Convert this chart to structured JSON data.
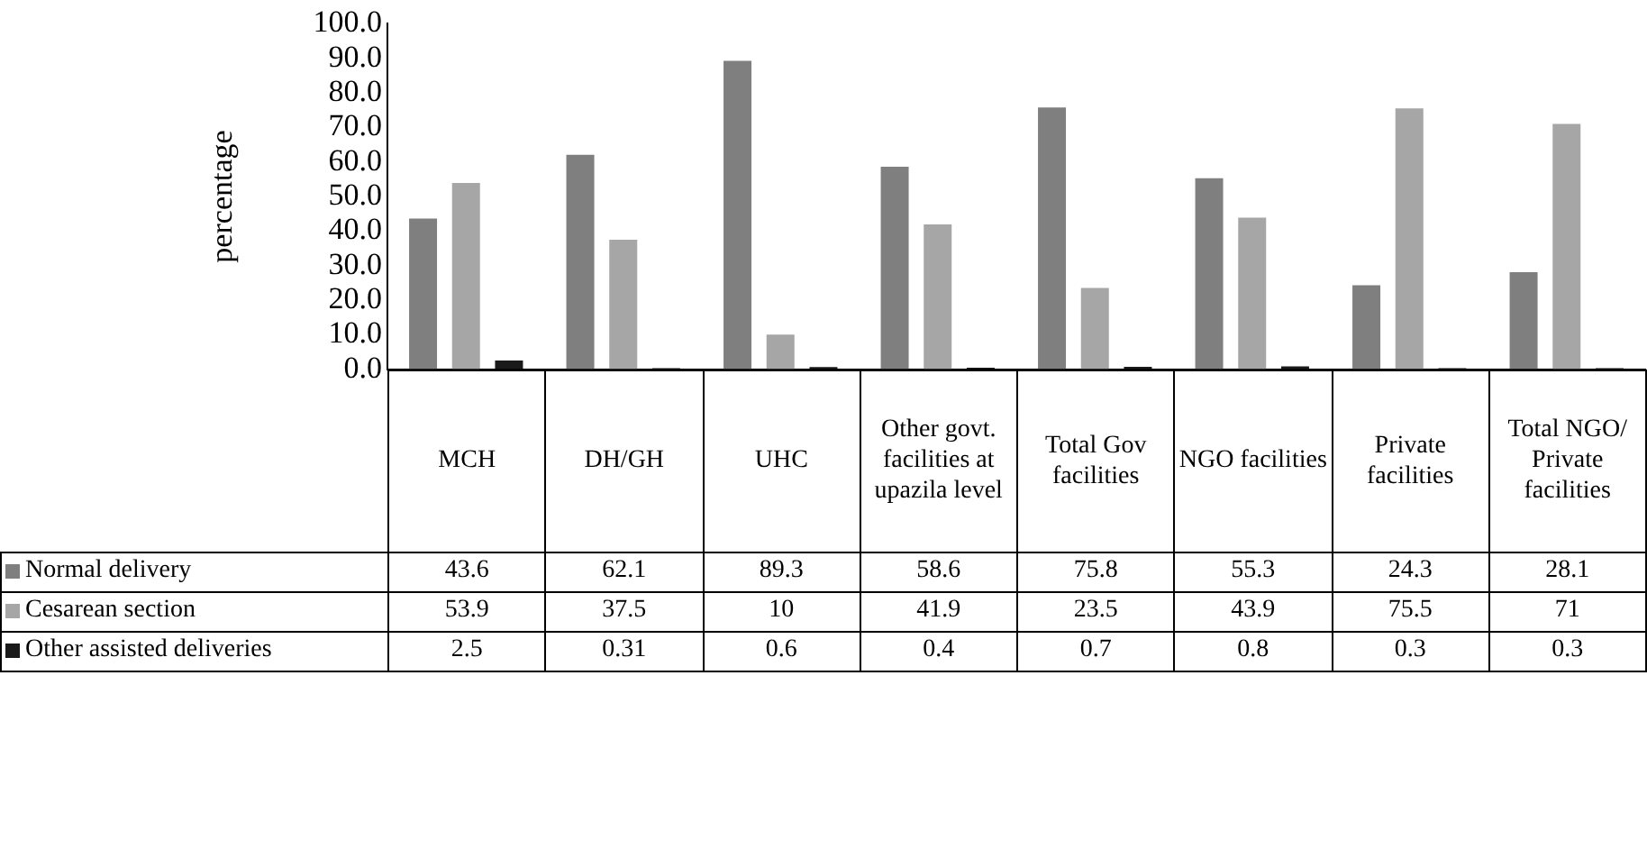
{
  "chart_data": {
    "type": "bar",
    "ylabel": "percentage",
    "categories": [
      "MCH",
      "DH/GH",
      "UHC",
      "Other govt. facilities at upazila level",
      "Total Gov facilities",
      "NGO facilities",
      "Private facilities",
      "Total NGO/ Private facilities"
    ],
    "series": [
      {
        "name": "Normal delivery",
        "color": "#7f7f7f",
        "values": [
          43.6,
          62.1,
          89.3,
          58.6,
          75.8,
          55.3,
          24.3,
          28.1
        ]
      },
      {
        "name": "Cesarean section",
        "color": "#a6a6a6",
        "values": [
          53.9,
          37.5,
          10,
          41.9,
          23.5,
          43.9,
          75.5,
          71
        ]
      },
      {
        "name": "Other assisted deliveries",
        "color": "#1a1a1a",
        "values": [
          2.5,
          0.31,
          0.6,
          0.4,
          0.7,
          0.8,
          0.3,
          0.3
        ]
      }
    ],
    "ylim": [
      0,
      100
    ],
    "yticks": [
      {
        "value": 0,
        "label": "0.0"
      },
      {
        "value": 10,
        "label": "10.0"
      },
      {
        "value": 20,
        "label": "20.0"
      },
      {
        "value": 30,
        "label": "30.0"
      },
      {
        "value": 40,
        "label": "40.0"
      },
      {
        "value": 50,
        "label": "50.0"
      },
      {
        "value": 60,
        "label": "60.0"
      },
      {
        "value": 70,
        "label": "70.0"
      },
      {
        "value": 80,
        "label": "80.0"
      },
      {
        "value": 90,
        "label": "90.0"
      },
      {
        "value": 100,
        "label": "100.0"
      }
    ],
    "data_labels": true,
    "legend": "bottom"
  }
}
